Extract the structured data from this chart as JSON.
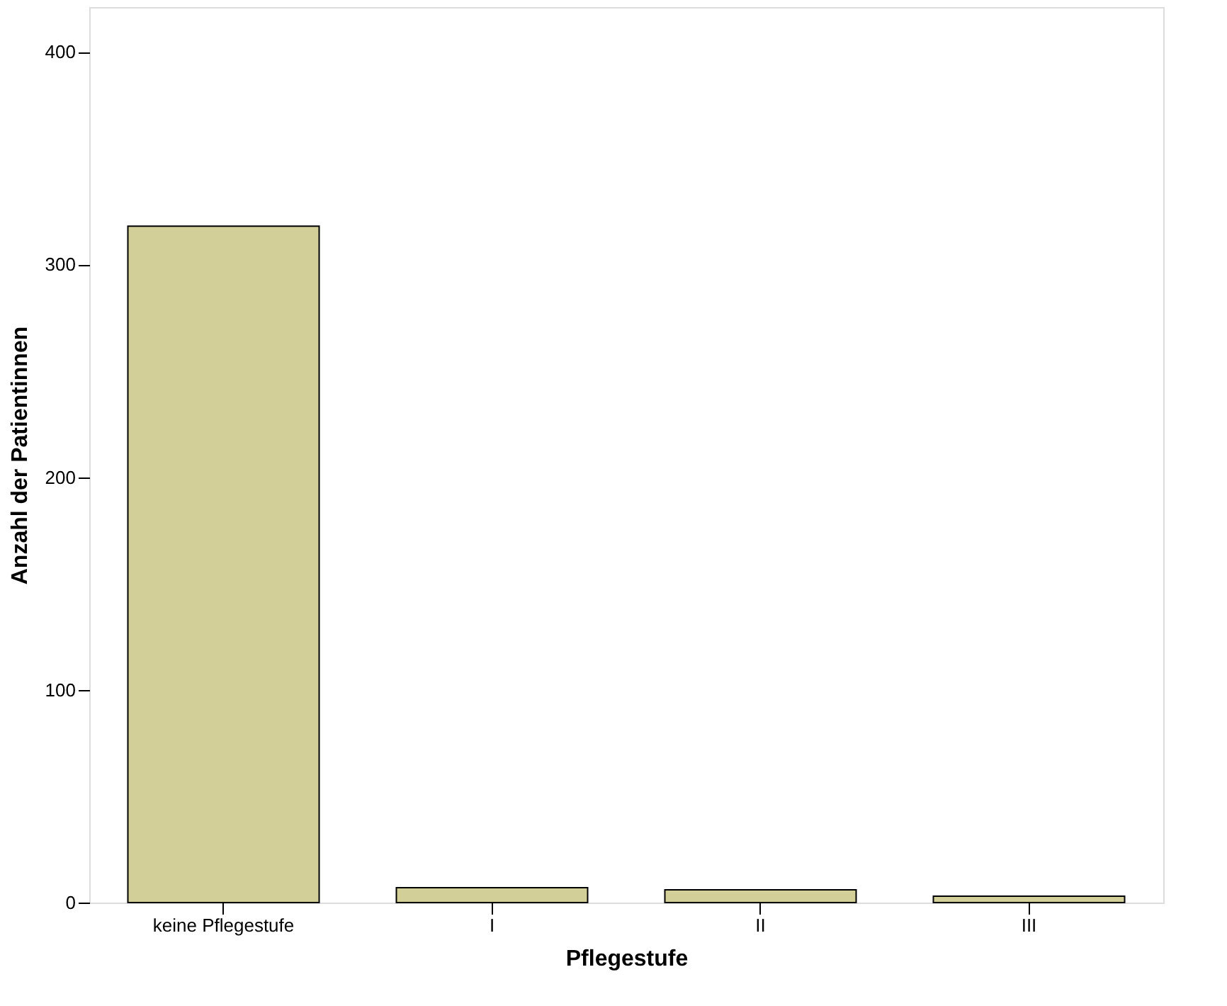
{
  "chart_data": {
    "type": "bar",
    "xlabel": "Pflegestufe",
    "ylabel": "Anzahl der Patientinnen",
    "categories": [
      "keine Pflegestufe",
      "I",
      "II",
      "III"
    ],
    "values": [
      318,
      7,
      6,
      3
    ],
    "color": "#d3cf99",
    "ylim": [
      0,
      421
    ],
    "yticks": [
      0,
      100,
      200,
      300,
      400
    ],
    "grid": false
  }
}
